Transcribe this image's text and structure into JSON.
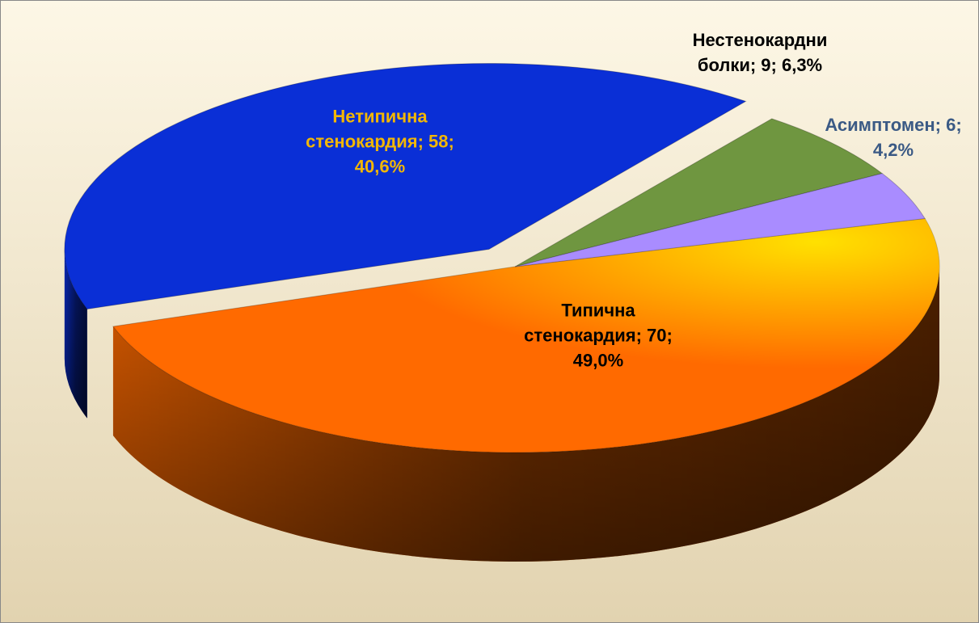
{
  "chart_data": {
    "type": "pie3d",
    "values": [
      70,
      58,
      9,
      6
    ],
    "value_labels": [
      "Типична стенокардия; 70; 49,0%",
      "Нетипична стенокардия; 58; 40,6%",
      "Нестенокардни болки; 9; 6,3%",
      "Асимптомен; 6; 4,2%"
    ],
    "colors": [
      "#ff6a00",
      "#0a2fd6",
      "#6f9640",
      "#a98cff"
    ],
    "label_colors": [
      "#000000",
      "#f2b705",
      "#000000",
      "#3b5a85"
    ],
    "exploded": [
      false,
      true,
      false,
      false
    ]
  }
}
